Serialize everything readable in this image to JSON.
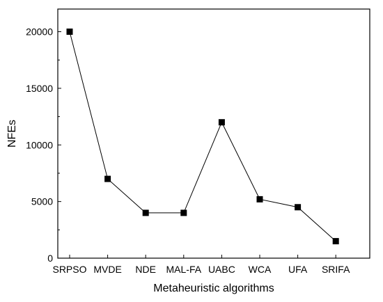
{
  "chart_data": {
    "type": "line",
    "title": "",
    "xlabel": "Metaheuristic algorithms",
    "ylabel": "NFEs",
    "categories": [
      "SRPSO",
      "MVDE",
      "NDE",
      "MAL-FA",
      "UABC",
      "WCA",
      "UFA",
      "SRIFA"
    ],
    "series": [
      {
        "values": [
          20000,
          7000,
          4000,
          4000,
          12000,
          5200,
          4500,
          1500
        ]
      }
    ],
    "ylim": [
      0,
      22000
    ],
    "yticks": [
      0,
      5000,
      10000,
      15000,
      20000
    ],
    "grid": false,
    "legend": "none",
    "line_color": "#000000",
    "marker": "square"
  }
}
